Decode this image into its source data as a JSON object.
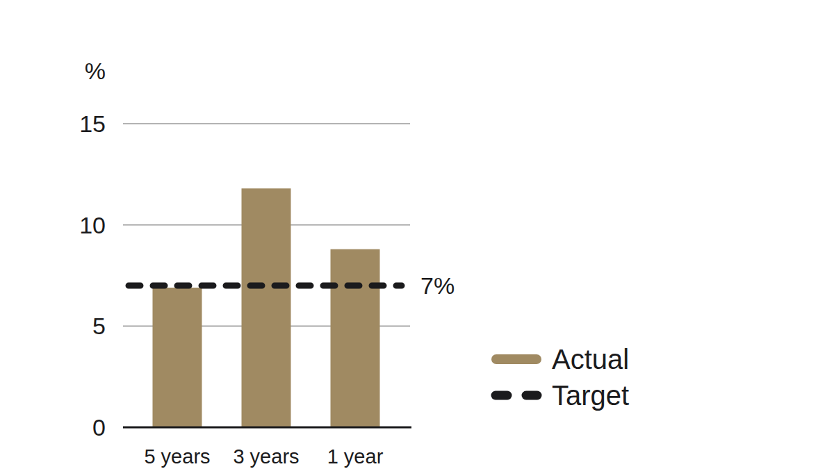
{
  "chart_data": {
    "type": "bar",
    "y_label": "%",
    "categories": [
      "5 years",
      "3 years",
      "1 year"
    ],
    "series": [
      {
        "name": "Actual",
        "type": "bar",
        "color": "#a08a62",
        "values": [
          6.9,
          11.8,
          8.8
        ]
      },
      {
        "name": "Target",
        "type": "line",
        "line_style": "dashed",
        "color": "#1b1b1d",
        "values": [
          7,
          7,
          7
        ]
      }
    ],
    "annotations": [
      {
        "text": "7%",
        "y": 7
      }
    ],
    "ylim": [
      0,
      15
    ],
    "yticks": [
      0,
      5,
      10,
      15
    ],
    "grid": true,
    "legend": "right"
  }
}
